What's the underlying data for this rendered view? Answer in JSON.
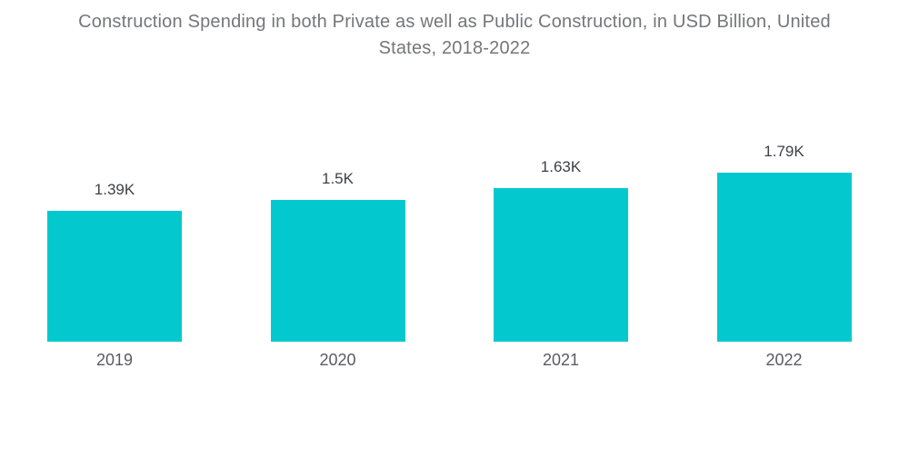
{
  "chart_data": {
    "type": "bar",
    "title": "Construction Spending in both Private as well as Public Construction, in USD Billion, United States, 2018-2022",
    "title_lines": [
      "Construction Spending in both Private as well as Public Construction, in USD Billion, United",
      "States, 2018-2022"
    ],
    "categories": [
      "2019",
      "2020",
      "2021",
      "2022"
    ],
    "values": [
      1390,
      1500,
      1630,
      1790
    ],
    "data_labels": [
      "1.39K",
      "1.5K",
      "1.63K",
      "1.79K"
    ],
    "xlabel": "",
    "ylabel": "",
    "ylim": [
      0,
      1900
    ],
    "grid": false,
    "legend": "none",
    "colors": {
      "bar": "#03C9CE",
      "title": "#75767A",
      "data_label": "#3F4145",
      "axis_label": "#5A5B60",
      "background": "#FFFFFF"
    }
  }
}
